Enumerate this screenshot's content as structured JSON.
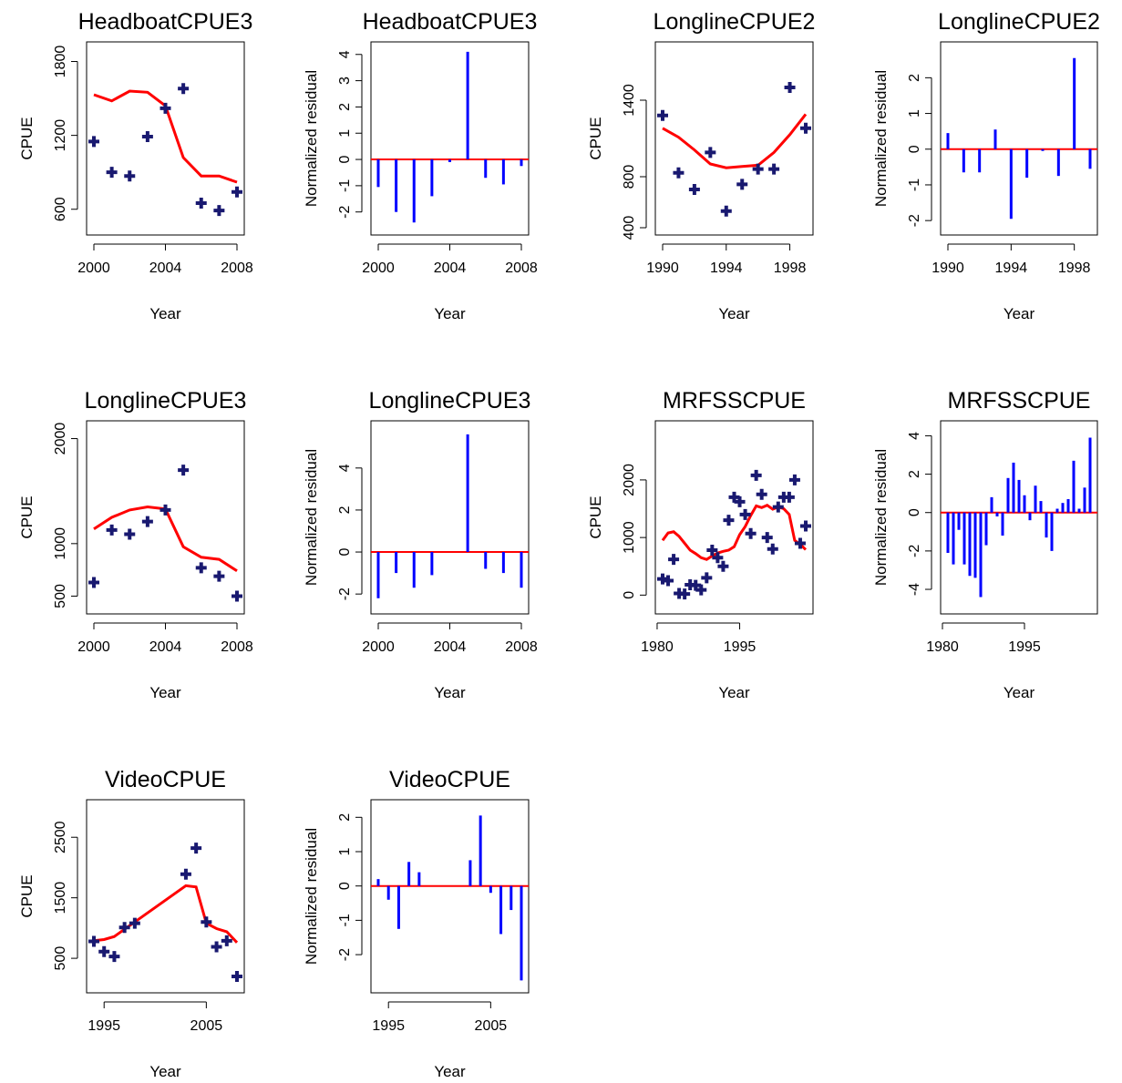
{
  "colors": {
    "obs": "#191970",
    "fit": "#ff0000",
    "resid": "#0000ff",
    "axis": "#000000"
  },
  "panels": [
    {
      "title": "HeadboatCPUE3",
      "xlabel": "Year",
      "ylabel": "CPUE",
      "xticks": [
        "2000",
        "2004",
        "2008"
      ],
      "yticks": [
        "600",
        "1200",
        "1800"
      ]
    },
    {
      "title": "HeadboatCPUE3",
      "xlabel": "Year",
      "ylabel": "Normalized residual",
      "xticks": [
        "2000",
        "2004",
        "2008"
      ],
      "yticks": [
        "-2",
        "-1",
        "0",
        "1",
        "2",
        "3",
        "4"
      ]
    },
    {
      "title": "LonglineCPUE2",
      "xlabel": "Year",
      "ylabel": "CPUE",
      "xticks": [
        "1990",
        "1994",
        "1998"
      ],
      "yticks": [
        "400",
        "800",
        "1400"
      ]
    },
    {
      "title": "LonglineCPUE2",
      "xlabel": "Year",
      "ylabel": "Normalized residual",
      "xticks": [
        "1990",
        "1994",
        "1998"
      ],
      "yticks": [
        "-2",
        "-1",
        "0",
        "1",
        "2"
      ]
    },
    {
      "title": "LonglineCPUE3",
      "xlabel": "Year",
      "ylabel": "CPUE",
      "xticks": [
        "2000",
        "2004",
        "2008"
      ],
      "yticks": [
        "500",
        "1000",
        "2000"
      ]
    },
    {
      "title": "LonglineCPUE3",
      "xlabel": "Year",
      "ylabel": "Normalized residual",
      "xticks": [
        "2000",
        "2004",
        "2008"
      ],
      "yticks": [
        "-2",
        "0",
        "2",
        "4"
      ]
    },
    {
      "title": "MRFSSCPUE",
      "xlabel": "Year",
      "ylabel": "CPUE",
      "xticks": [
        "1980",
        "1995"
      ],
      "yticks": [
        "0",
        "1000",
        "2000"
      ]
    },
    {
      "title": "MRFSSCPUE",
      "xlabel": "Year",
      "ylabel": "Normalized residual",
      "xticks": [
        "1980",
        "1995"
      ],
      "yticks": [
        "-4",
        "-2",
        "0",
        "2",
        "4"
      ]
    },
    {
      "title": "VideoCPUE",
      "xlabel": "Year",
      "ylabel": "CPUE",
      "xticks": [
        "1995",
        "2005"
      ],
      "yticks": [
        "500",
        "1500",
        "2500"
      ]
    },
    {
      "title": "VideoCPUE",
      "xlabel": "Year",
      "ylabel": "Normalized residual",
      "xticks": [
        "1995",
        "2005"
      ],
      "yticks": [
        "-2",
        "-1",
        "0",
        "1",
        "2"
      ]
    }
  ],
  "chart_data": [
    {
      "type": "scatter",
      "title": "HeadboatCPUE3",
      "xlabel": "Year",
      "ylabel": "CPUE",
      "xlim": [
        2000,
        2008
      ],
      "ylim": [
        450,
        1900
      ],
      "xticks": [
        2000,
        2004,
        2008
      ],
      "yticks": [
        600,
        1200,
        1800
      ],
      "x": [
        2000,
        2001,
        2002,
        2003,
        2004,
        2005,
        2006,
        2007,
        2008
      ],
      "observed": [
        1150,
        900,
        870,
        1190,
        1420,
        1580,
        650,
        590,
        740
      ],
      "predicted": [
        1530,
        1480,
        1560,
        1550,
        1440,
        1020,
        870,
        870,
        820
      ]
    },
    {
      "type": "bar",
      "title": "HeadboatCPUE3",
      "xlabel": "Year",
      "ylabel": "Normalized residual",
      "xlim": [
        2000,
        2008
      ],
      "ylim": [
        -2.6,
        4.2
      ],
      "xticks": [
        2000,
        2004,
        2008
      ],
      "yticks": [
        -2,
        -1,
        0,
        1,
        2,
        3,
        4
      ],
      "x": [
        2000,
        2001,
        2002,
        2003,
        2004,
        2005,
        2006,
        2007,
        2008
      ],
      "values": [
        -1.05,
        -2.0,
        -2.4,
        -1.4,
        -0.1,
        4.1,
        -0.7,
        -0.95,
        -0.25
      ]
    },
    {
      "type": "scatter",
      "title": "LonglineCPUE2",
      "xlabel": "Year",
      "ylabel": "CPUE",
      "xlim": [
        1990,
        1999
      ],
      "ylim": [
        400,
        1800
      ],
      "xticks": [
        1990,
        1994,
        1998
      ],
      "yticks": [
        400,
        800,
        1400
      ],
      "x": [
        1990,
        1991,
        1992,
        1993,
        1994,
        1995,
        1996,
        1997,
        1998,
        1999
      ],
      "observed": [
        1280,
        830,
        700,
        990,
        530,
        740,
        860,
        860,
        1500,
        1180
      ],
      "predicted": [
        1180,
        1110,
        1010,
        900,
        870,
        880,
        890,
        990,
        1130,
        1290
      ]
    },
    {
      "type": "bar",
      "title": "LonglineCPUE2",
      "xlabel": "Year",
      "ylabel": "Normalized residual",
      "xlim": [
        1990,
        1999
      ],
      "ylim": [
        -2.2,
        2.8
      ],
      "xticks": [
        1990,
        1994,
        1998
      ],
      "yticks": [
        -2,
        -1,
        0,
        1,
        2
      ],
      "x": [
        1990,
        1991,
        1992,
        1993,
        1994,
        1995,
        1996,
        1997,
        1998,
        1999
      ],
      "values": [
        0.45,
        -0.65,
        -0.65,
        0.55,
        -1.95,
        -0.8,
        -0.05,
        -0.75,
        2.55,
        -0.55
      ]
    },
    {
      "type": "scatter",
      "title": "LonglineCPUE3",
      "xlabel": "Year",
      "ylabel": "CPUE",
      "xlim": [
        2000,
        2008
      ],
      "ylim": [
        400,
        2100
      ],
      "xticks": [
        2000,
        2004,
        2008
      ],
      "yticks": [
        500,
        1000,
        2000
      ],
      "x": [
        2000,
        2001,
        2002,
        2003,
        2004,
        2005,
        2006,
        2007,
        2008
      ],
      "observed": [
        630,
        1130,
        1090,
        1210,
        1320,
        1700,
        770,
        690,
        500
      ],
      "predicted": [
        1140,
        1250,
        1320,
        1350,
        1330,
        970,
        870,
        850,
        740
      ]
    },
    {
      "type": "bar",
      "title": "LonglineCPUE3",
      "xlabel": "Year",
      "ylabel": "Normalized residual",
      "xlim": [
        2000,
        2008
      ],
      "ylim": [
        -2.6,
        5.9
      ],
      "xticks": [
        2000,
        2004,
        2008
      ],
      "yticks": [
        -2,
        0,
        2,
        4
      ],
      "x": [
        2000,
        2001,
        2002,
        2003,
        2004,
        2005,
        2006,
        2007,
        2008
      ],
      "values": [
        -2.2,
        -1.0,
        -1.7,
        -1.1,
        0,
        5.6,
        -0.8,
        -1.0,
        -1.7
      ]
    },
    {
      "type": "scatter",
      "title": "MRFSSCPUE",
      "xlabel": "Year",
      "ylabel": "CPUE",
      "xlim": [
        1981,
        2007
      ],
      "ylim": [
        -200,
        2900
      ],
      "xticks": [
        1980,
        1995
      ],
      "yticks": [
        0,
        1000,
        2000
      ],
      "x": [
        1981,
        1982,
        1983,
        1984,
        1985,
        1986,
        1987,
        1988,
        1989,
        1990,
        1991,
        1992,
        1993,
        1994,
        1995,
        1996,
        1997,
        1998,
        1999,
        2000,
        2001,
        2002,
        2003,
        2004,
        2005,
        2006,
        2007
      ],
      "observed": [
        280,
        250,
        620,
        30,
        20,
        180,
        170,
        90,
        300,
        780,
        650,
        500,
        1300,
        1700,
        1620,
        1400,
        1070,
        2080,
        1750,
        1000,
        800,
        1530,
        1700,
        1700,
        2000,
        900,
        1200
      ],
      "predicted": [
        950,
        1080,
        1100,
        1020,
        900,
        780,
        720,
        650,
        620,
        680,
        730,
        760,
        780,
        840,
        1050,
        1190,
        1380,
        1550,
        1520,
        1560,
        1490,
        1530,
        1500,
        1400,
        950,
        880,
        790
      ]
    },
    {
      "type": "bar",
      "title": "MRFSSCPUE",
      "xlabel": "Year",
      "ylabel": "Normalized residual",
      "xlim": [
        1981,
        2007
      ],
      "ylim": [
        -4.9,
        4.4
      ],
      "xticks": [
        1980,
        1995
      ],
      "yticks": [
        -4,
        -2,
        0,
        2,
        4
      ],
      "x": [
        1981,
        1982,
        1983,
        1984,
        1985,
        1986,
        1987,
        1988,
        1989,
        1990,
        1991,
        1992,
        1993,
        1994,
        1995,
        1996,
        1997,
        1998,
        1999,
        2000,
        2001,
        2002,
        2003,
        2004,
        2005,
        2006,
        2007
      ],
      "values": [
        -2.1,
        -2.7,
        -0.9,
        -2.7,
        -3.3,
        -3.4,
        -4.4,
        -1.7,
        0.8,
        -0.2,
        -1.2,
        1.8,
        2.6,
        1.7,
        0.9,
        -0.4,
        1.4,
        0.6,
        -1.3,
        -2.0,
        0.2,
        0.5,
        0.7,
        2.7,
        0.2,
        1.3,
        3.9
      ]
    },
    {
      "type": "scatter",
      "title": "VideoCPUE",
      "xlabel": "Year",
      "ylabel": "CPUE",
      "xlim": [
        1994,
        2008
      ],
      "ylim": [
        50,
        3000
      ],
      "xticks": [
        1995,
        2005
      ],
      "yticks": [
        500,
        1500,
        2500
      ],
      "x": [
        1994,
        1995,
        1996,
        1997,
        1998,
        2003,
        2004,
        2005,
        2006,
        2007,
        2008
      ],
      "observed": [
        780,
        610,
        530,
        1010,
        1080,
        1890,
        2320,
        1100,
        690,
        790,
        200
      ],
      "predicted": [
        790,
        810,
        860,
        980,
        1100,
        1700,
        1680,
        1080,
        990,
        940,
        760
      ]
    },
    {
      "type": "bar",
      "title": "VideoCPUE",
      "xlabel": "Year",
      "ylabel": "Normalized residual",
      "xlim": [
        1994,
        2008
      ],
      "ylim": [
        -2.9,
        2.3
      ],
      "xticks": [
        1995,
        2005
      ],
      "yticks": [
        -2,
        -1,
        0,
        1,
        2
      ],
      "x": [
        1994,
        1995,
        1996,
        1997,
        1998,
        2003,
        2004,
        2005,
        2006,
        2007,
        2008
      ],
      "values": [
        0.2,
        -0.4,
        -1.25,
        0.7,
        0.4,
        0.75,
        2.05,
        -0.2,
        -1.4,
        -0.7,
        -2.75
      ]
    }
  ]
}
